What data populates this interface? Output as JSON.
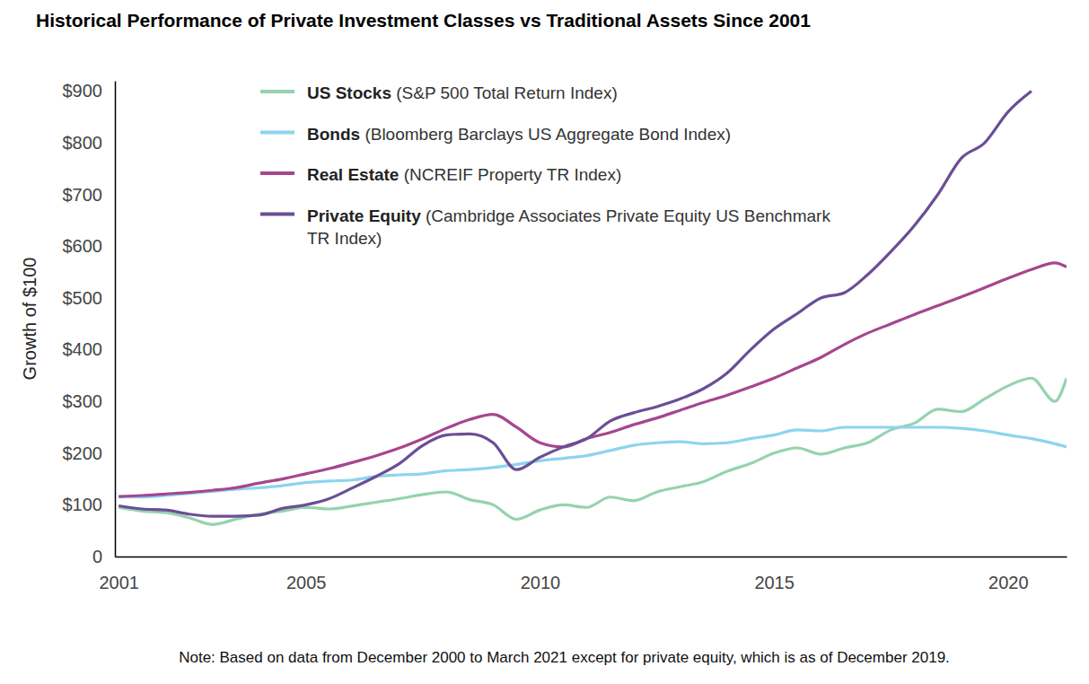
{
  "chart_data": {
    "type": "line",
    "title": "Historical Performance of Private Investment Classes vs Traditional Assets Since 2001",
    "ylabel": "Growth of $100",
    "annotations": [
      "Note: Based on data from December 2000 to March 2021 except for private equity, which is as of December 2019."
    ],
    "x": [
      2001,
      2001.5,
      2002,
      2002.5,
      2003,
      2003.5,
      2004,
      2004.5,
      2005,
      2005.5,
      2006,
      2006.5,
      2007,
      2007.5,
      2008,
      2008.5,
      2009,
      2009.5,
      2010,
      2010.5,
      2011,
      2011.5,
      2012,
      2012.5,
      2013,
      2013.5,
      2014,
      2014.5,
      2015,
      2015.5,
      2016,
      2016.5,
      2017,
      2017.5,
      2018,
      2018.5,
      2019,
      2019.5,
      2020,
      2020.5,
      2021,
      2021.25
    ],
    "series": [
      {
        "name": "US Stocks (S&P 500 Total Return Index)",
        "color": "#94d3ae",
        "values": [
          95,
          88,
          85,
          75,
          62,
          72,
          82,
          88,
          95,
          92,
          98,
          105,
          112,
          120,
          125,
          110,
          100,
          72,
          90,
          100,
          95,
          115,
          108,
          125,
          135,
          145,
          165,
          180,
          200,
          210,
          198,
          210,
          220,
          245,
          258,
          285,
          280,
          305,
          330,
          345,
          300,
          345
        ]
      },
      {
        "name": "Bonds (Bloomberg Barclays US Aggregate Bond Index)",
        "color": "#8dd4ee",
        "values": [
          115,
          115,
          118,
          122,
          126,
          130,
          133,
          137,
          143,
          146,
          148,
          155,
          158,
          160,
          166,
          168,
          172,
          178,
          185,
          190,
          195,
          205,
          215,
          220,
          222,
          218,
          220,
          228,
          235,
          245,
          243,
          250,
          250,
          250,
          250,
          250,
          248,
          243,
          235,
          228,
          218,
          212
        ]
      },
      {
        "name": "Real Estate (NCREIF Property TR Index)",
        "color": "#a6468f",
        "values": [
          116,
          118,
          121,
          124,
          128,
          133,
          142,
          150,
          160,
          170,
          182,
          195,
          210,
          228,
          248,
          265,
          275,
          250,
          220,
          212,
          228,
          240,
          255,
          268,
          283,
          298,
          312,
          328,
          345,
          365,
          385,
          410,
          432,
          450,
          468,
          485,
          502,
          520,
          538,
          555,
          568,
          560
        ]
      },
      {
        "name": "Private Equity (Cambridge Associates Private Equity US Benchmark TR Index)",
        "color": "#6b4e96",
        "values": [
          98,
          92,
          90,
          82,
          78,
          78,
          80,
          93,
          100,
          112,
          133,
          155,
          180,
          215,
          235,
          237,
          220,
          168,
          192,
          212,
          228,
          262,
          278,
          290,
          305,
          325,
          355,
          400,
          440,
          470,
          500,
          510,
          545,
          590,
          640,
          700,
          770,
          800,
          860,
          900,
          null,
          null
        ]
      }
    ],
    "xlim": [
      2000.92,
      2021.25
    ],
    "xticks": [
      2001,
      2005,
      2010,
      2015,
      2020
    ],
    "ylim": [
      0,
      920
    ],
    "yticks": [
      0,
      {
        "value": 100,
        "label": "$100"
      },
      {
        "value": 200,
        "label": "$200"
      },
      {
        "value": 300,
        "label": "$300"
      },
      {
        "value": 400,
        "label": "$400"
      },
      {
        "value": 500,
        "label": "$500"
      },
      {
        "value": 600,
        "label": "$600"
      },
      {
        "value": 700,
        "label": "$700"
      },
      {
        "value": 800,
        "label": "$800"
      },
      {
        "value": 900,
        "label": "$900"
      }
    ],
    "grid": false,
    "legend": "upper left"
  }
}
